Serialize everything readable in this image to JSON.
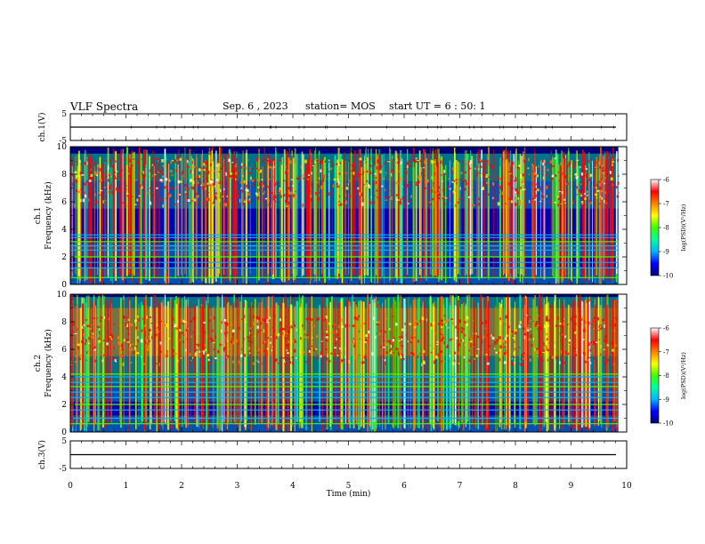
{
  "header": {
    "title": "VLF Spectra",
    "date": "Sep. 6 , 2023",
    "station": "station= MOS",
    "start": "start UT = 6 : 50: 1"
  },
  "chart_data": [
    {
      "type": "line",
      "name": "ch1-waveform",
      "ylabel": "ch.1(V)",
      "ylim": [
        -5,
        5
      ],
      "yticks": [
        "5",
        "-5"
      ],
      "xlim": [
        0,
        10
      ],
      "baseline": 0
    },
    {
      "type": "heatmap",
      "name": "ch1-spectrogram",
      "ylabel": "ch.1\nFrequency (kHz)",
      "ylim": [
        0,
        10
      ],
      "yticks": [
        "0",
        "2",
        "4",
        "6",
        "8",
        "10"
      ],
      "xlim": [
        0,
        9.85
      ],
      "colorbar": {
        "label": "log(PSD)(V²/Hz)",
        "ticks": [
          "-6",
          "-7",
          "-8",
          "-9",
          "-10"
        ],
        "range": [
          -10,
          -6
        ]
      }
    },
    {
      "type": "heatmap",
      "name": "ch2-spectrogram",
      "ylabel": "ch.2\nFrequency (kHz)",
      "ylim": [
        0,
        10
      ],
      "yticks": [
        "0",
        "2",
        "4",
        "6",
        "8",
        "10"
      ],
      "xlim": [
        0,
        9.85
      ],
      "colorbar": {
        "label": "log(PSD)(V²/Hz)",
        "ticks": [
          "-6",
          "-7",
          "-8",
          "-9",
          "-10"
        ],
        "range": [
          -10,
          -6
        ]
      }
    },
    {
      "type": "line",
      "name": "ch3-waveform",
      "ylabel": "ch.3(V)",
      "ylim": [
        -5,
        5
      ],
      "yticks": [
        "5",
        "-5"
      ],
      "xlim": [
        0,
        10
      ],
      "baseline": 0
    }
  ],
  "xaxis": {
    "label": "Time (min)",
    "ticks": [
      "0",
      "1",
      "2",
      "3",
      "4",
      "5",
      "6",
      "7",
      "8",
      "9",
      "10"
    ]
  },
  "colors": {
    "background": "#ffffff",
    "axes": "#000000",
    "colormap": [
      "#00007a",
      "#0000ff",
      "#00b4ff",
      "#00ffa0",
      "#40ff00",
      "#ffff00",
      "#ff8000",
      "#ff0000",
      "#ffffff"
    ]
  }
}
